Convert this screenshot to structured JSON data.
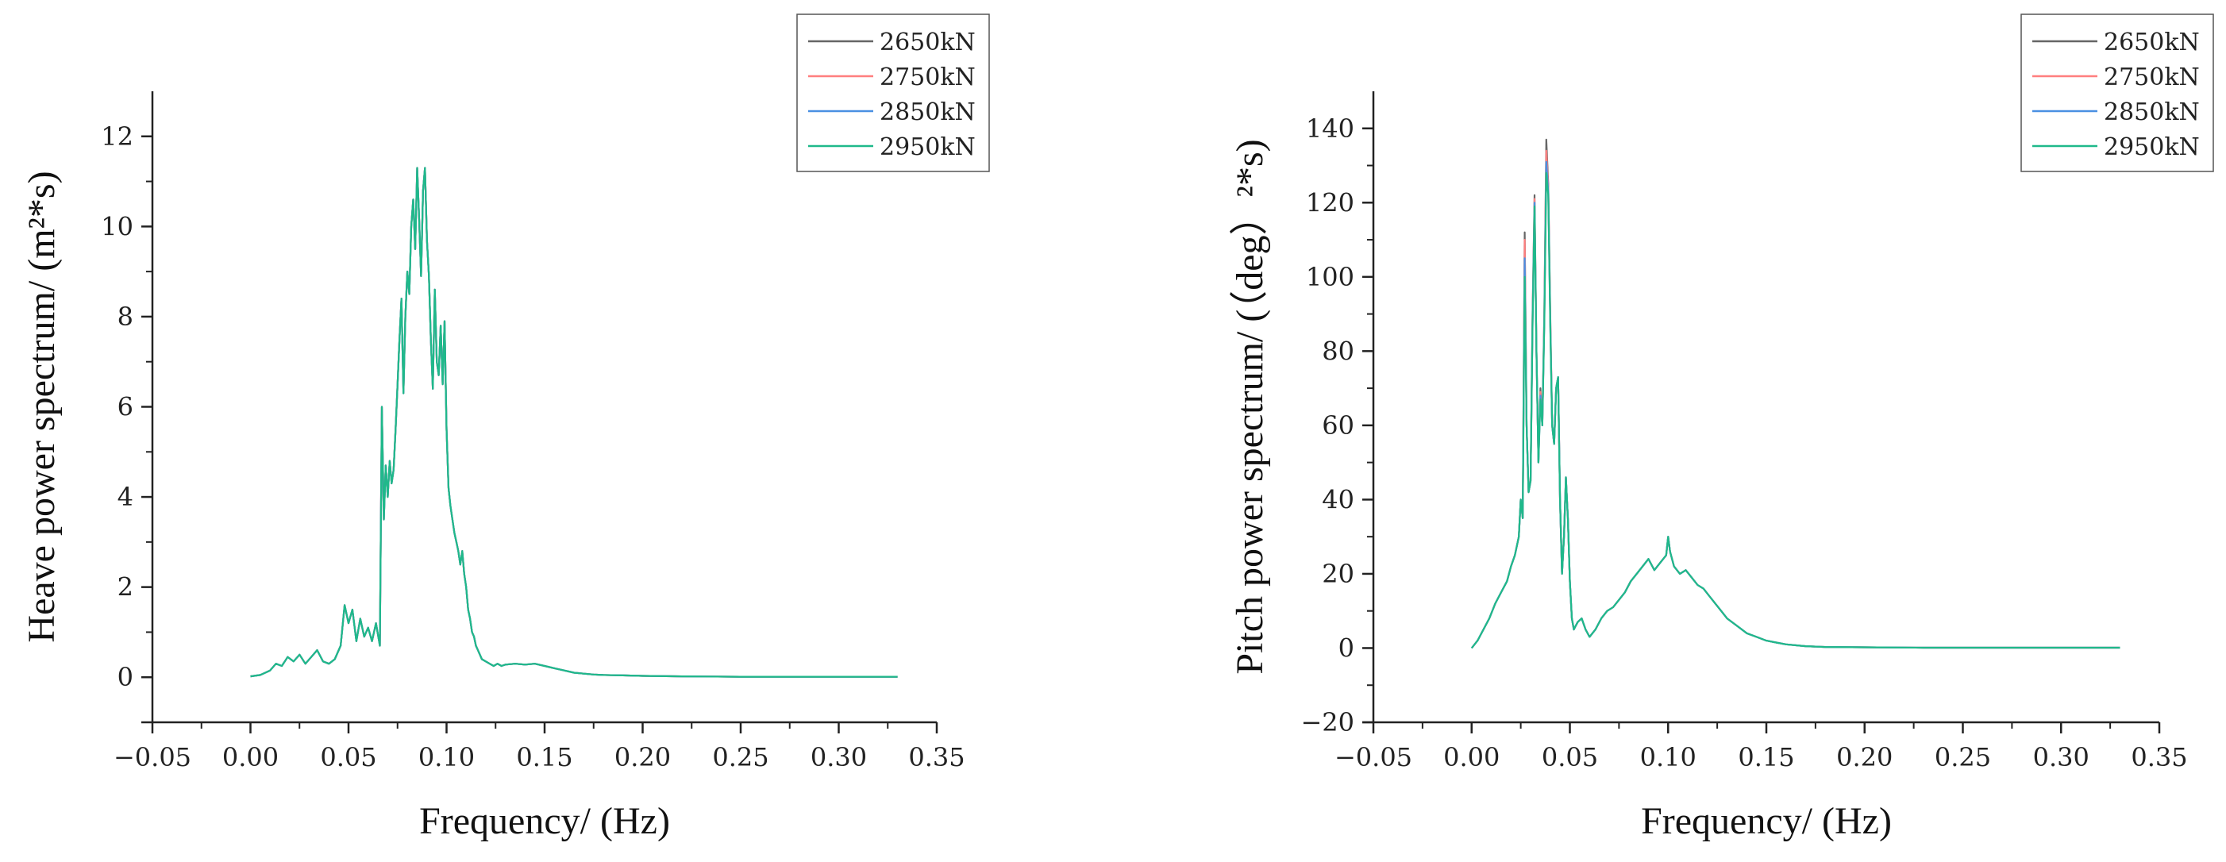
{
  "colors": {
    "series": [
      "#666666",
      "#ff7f7f",
      "#4a90e2",
      "#1fb98a"
    ]
  },
  "chart_data": [
    {
      "type": "line",
      "title": "",
      "xlabel": "Frequency/ (Hz)",
      "ylabel": "Heave power spectrum/ (m²*s)",
      "xlim": [
        -0.05,
        0.35
      ],
      "ylim": [
        -1,
        13
      ],
      "xticks": [
        -0.05,
        0.0,
        0.05,
        0.1,
        0.15,
        0.2,
        0.25,
        0.3,
        0.35
      ],
      "xtick_labels": [
        "−0.05",
        "0.00",
        "0.05",
        "0.10",
        "0.15",
        "0.20",
        "0.25",
        "0.30",
        "0.35"
      ],
      "yticks": [
        0,
        2,
        4,
        6,
        8,
        10,
        12
      ],
      "ytick_labels": [
        "0",
        "2",
        "4",
        "6",
        "8",
        "10",
        "12"
      ],
      "legend": [
        "2650kN",
        "2750kN",
        "2850kN",
        "2950kN"
      ],
      "x": [
        0.0,
        0.005,
        0.01,
        0.013,
        0.016,
        0.019,
        0.022,
        0.025,
        0.028,
        0.031,
        0.034,
        0.037,
        0.04,
        0.043,
        0.046,
        0.048,
        0.05,
        0.052,
        0.054,
        0.056,
        0.058,
        0.06,
        0.062,
        0.064,
        0.066,
        0.067,
        0.068,
        0.069,
        0.07,
        0.071,
        0.072,
        0.073,
        0.074,
        0.075,
        0.076,
        0.077,
        0.078,
        0.079,
        0.08,
        0.081,
        0.082,
        0.083,
        0.084,
        0.085,
        0.086,
        0.087,
        0.088,
        0.089,
        0.09,
        0.091,
        0.092,
        0.093,
        0.094,
        0.095,
        0.096,
        0.097,
        0.098,
        0.099,
        0.1,
        0.101,
        0.102,
        0.103,
        0.104,
        0.105,
        0.106,
        0.107,
        0.108,
        0.109,
        0.11,
        0.111,
        0.112,
        0.113,
        0.114,
        0.115,
        0.116,
        0.118,
        0.12,
        0.122,
        0.124,
        0.126,
        0.128,
        0.13,
        0.135,
        0.14,
        0.145,
        0.15,
        0.155,
        0.16,
        0.165,
        0.17,
        0.175,
        0.18,
        0.19,
        0.2,
        0.22,
        0.25,
        0.28,
        0.3,
        0.33
      ],
      "series": [
        {
          "name": "2650kN",
          "values": [
            0.02,
            0.05,
            0.15,
            0.3,
            0.25,
            0.45,
            0.35,
            0.5,
            0.3,
            0.45,
            0.6,
            0.35,
            0.3,
            0.4,
            0.7,
            1.6,
            1.2,
            1.5,
            0.8,
            1.3,
            0.9,
            1.1,
            0.8,
            1.2,
            0.7,
            6.0,
            3.5,
            4.7,
            4.0,
            4.8,
            4.3,
            4.6,
            5.5,
            6.5,
            7.5,
            8.4,
            6.3,
            8.0,
            9.0,
            8.5,
            10.0,
            10.6,
            9.5,
            11.3,
            10.2,
            8.9,
            10.8,
            11.3,
            9.7,
            8.9,
            7.5,
            6.4,
            8.6,
            7.0,
            6.7,
            7.8,
            6.5,
            7.9,
            5.5,
            4.2,
            3.8,
            3.5,
            3.2,
            3.0,
            2.8,
            2.5,
            2.8,
            2.3,
            2.0,
            1.5,
            1.3,
            1.0,
            0.9,
            0.7,
            0.6,
            0.4,
            0.35,
            0.3,
            0.25,
            0.3,
            0.25,
            0.28,
            0.3,
            0.28,
            0.3,
            0.25,
            0.2,
            0.15,
            0.1,
            0.08,
            0.06,
            0.05,
            0.04,
            0.03,
            0.02,
            0.01,
            0.01,
            0.01,
            0.01
          ]
        },
        {
          "name": "2750kN",
          "values": [
            0.02,
            0.05,
            0.15,
            0.3,
            0.25,
            0.45,
            0.35,
            0.5,
            0.3,
            0.45,
            0.6,
            0.35,
            0.3,
            0.4,
            0.7,
            1.6,
            1.2,
            1.5,
            0.8,
            1.3,
            0.9,
            1.1,
            0.8,
            1.2,
            0.7,
            6.0,
            3.5,
            4.7,
            4.0,
            4.8,
            4.3,
            4.6,
            5.5,
            6.5,
            7.5,
            8.4,
            6.3,
            8.0,
            9.0,
            8.5,
            10.0,
            10.6,
            9.5,
            11.3,
            10.2,
            8.9,
            10.8,
            11.3,
            9.7,
            8.9,
            7.5,
            6.4,
            8.6,
            7.0,
            6.7,
            7.8,
            6.5,
            7.9,
            5.5,
            4.2,
            3.8,
            3.5,
            3.2,
            3.0,
            2.8,
            2.5,
            2.8,
            2.3,
            2.0,
            1.5,
            1.3,
            1.0,
            0.9,
            0.7,
            0.6,
            0.4,
            0.35,
            0.3,
            0.25,
            0.3,
            0.25,
            0.28,
            0.3,
            0.28,
            0.3,
            0.25,
            0.2,
            0.15,
            0.1,
            0.08,
            0.06,
            0.05,
            0.04,
            0.03,
            0.02,
            0.01,
            0.01,
            0.01,
            0.01
          ]
        },
        {
          "name": "2850kN",
          "values": [
            0.02,
            0.05,
            0.15,
            0.3,
            0.25,
            0.45,
            0.35,
            0.5,
            0.3,
            0.45,
            0.6,
            0.35,
            0.3,
            0.4,
            0.7,
            1.6,
            1.2,
            1.5,
            0.8,
            1.3,
            0.9,
            1.1,
            0.8,
            1.2,
            0.7,
            6.0,
            3.5,
            4.7,
            4.0,
            4.8,
            4.3,
            4.6,
            5.5,
            6.5,
            7.5,
            8.4,
            6.3,
            8.0,
            9.0,
            8.5,
            10.0,
            10.6,
            9.5,
            11.3,
            10.2,
            8.9,
            10.8,
            11.3,
            9.7,
            8.9,
            7.5,
            6.4,
            8.6,
            7.0,
            6.7,
            7.8,
            6.5,
            7.9,
            5.5,
            4.2,
            3.8,
            3.5,
            3.2,
            3.0,
            2.8,
            2.5,
            2.8,
            2.3,
            2.0,
            1.5,
            1.3,
            1.0,
            0.9,
            0.7,
            0.6,
            0.4,
            0.35,
            0.3,
            0.25,
            0.3,
            0.25,
            0.28,
            0.3,
            0.28,
            0.3,
            0.25,
            0.2,
            0.15,
            0.1,
            0.08,
            0.06,
            0.05,
            0.04,
            0.03,
            0.02,
            0.01,
            0.01,
            0.01,
            0.01
          ]
        },
        {
          "name": "2950kN",
          "values": [
            0.02,
            0.05,
            0.15,
            0.3,
            0.25,
            0.45,
            0.35,
            0.5,
            0.3,
            0.45,
            0.6,
            0.35,
            0.3,
            0.4,
            0.7,
            1.6,
            1.2,
            1.5,
            0.8,
            1.3,
            0.9,
            1.1,
            0.8,
            1.2,
            0.7,
            6.0,
            3.5,
            4.7,
            4.0,
            4.8,
            4.3,
            4.6,
            5.5,
            6.5,
            7.5,
            8.4,
            6.3,
            8.0,
            9.0,
            8.5,
            10.0,
            10.6,
            9.5,
            11.3,
            10.2,
            8.9,
            10.8,
            11.3,
            9.7,
            8.9,
            7.5,
            6.4,
            8.6,
            7.0,
            6.7,
            7.8,
            6.5,
            7.9,
            5.5,
            4.2,
            3.8,
            3.5,
            3.2,
            3.0,
            2.8,
            2.5,
            2.8,
            2.3,
            2.0,
            1.5,
            1.3,
            1.0,
            0.9,
            0.7,
            0.6,
            0.4,
            0.35,
            0.3,
            0.25,
            0.3,
            0.25,
            0.28,
            0.3,
            0.28,
            0.3,
            0.25,
            0.2,
            0.15,
            0.1,
            0.08,
            0.06,
            0.05,
            0.04,
            0.03,
            0.02,
            0.01,
            0.01,
            0.01,
            0.01
          ]
        }
      ]
    },
    {
      "type": "line",
      "title": "",
      "xlabel": "Frequency/ (Hz)",
      "ylabel": "Pitch power spectrum/ (（deg）²*s)",
      "xlim": [
        -0.05,
        0.35
      ],
      "ylim": [
        -20,
        150
      ],
      "xticks": [
        -0.05,
        0.0,
        0.05,
        0.1,
        0.15,
        0.2,
        0.25,
        0.3,
        0.35
      ],
      "xtick_labels": [
        "−0.05",
        "0.00",
        "0.05",
        "0.10",
        "0.15",
        "0.20",
        "0.25",
        "0.30",
        "0.35"
      ],
      "yticks": [
        -20,
        0,
        20,
        40,
        60,
        80,
        100,
        120,
        140
      ],
      "ytick_labels": [
        "−20",
        "0",
        "20",
        "40",
        "60",
        "80",
        "100",
        "120",
        "140"
      ],
      "legend": [
        "2650kN",
        "2750kN",
        "2850kN",
        "2950kN"
      ],
      "x": [
        0.0,
        0.003,
        0.006,
        0.009,
        0.012,
        0.015,
        0.018,
        0.02,
        0.022,
        0.024,
        0.025,
        0.026,
        0.027,
        0.028,
        0.029,
        0.03,
        0.031,
        0.032,
        0.033,
        0.034,
        0.035,
        0.036,
        0.037,
        0.038,
        0.039,
        0.04,
        0.041,
        0.042,
        0.043,
        0.044,
        0.045,
        0.046,
        0.047,
        0.048,
        0.049,
        0.05,
        0.051,
        0.052,
        0.053,
        0.054,
        0.056,
        0.058,
        0.06,
        0.063,
        0.066,
        0.069,
        0.072,
        0.075,
        0.078,
        0.081,
        0.084,
        0.087,
        0.09,
        0.093,
        0.096,
        0.099,
        0.1,
        0.101,
        0.103,
        0.106,
        0.109,
        0.112,
        0.115,
        0.118,
        0.121,
        0.124,
        0.127,
        0.13,
        0.135,
        0.14,
        0.145,
        0.15,
        0.155,
        0.16,
        0.17,
        0.18,
        0.2,
        0.23,
        0.26,
        0.3,
        0.33
      ],
      "series": [
        {
          "name": "2650kN",
          "values": [
            0,
            2,
            5,
            8,
            12,
            15,
            18,
            22,
            25,
            30,
            40,
            35,
            112,
            60,
            42,
            45,
            90,
            122,
            80,
            50,
            70,
            60,
            90,
            137,
            125,
            90,
            60,
            55,
            70,
            73,
            40,
            20,
            30,
            46,
            35,
            18,
            8,
            5,
            6,
            7,
            8,
            5,
            3,
            5,
            8,
            10,
            11,
            13,
            15,
            18,
            20,
            22,
            24,
            21,
            23,
            25,
            30,
            26,
            22,
            20,
            21,
            19,
            17,
            16,
            14,
            12,
            10,
            8,
            6,
            4,
            3,
            2,
            1.5,
            1,
            0.5,
            0.3,
            0.2,
            0.1,
            0.1,
            0.1,
            0.1
          ]
        },
        {
          "name": "2750kN",
          "values": [
            0,
            2,
            5,
            8,
            12,
            15,
            18,
            22,
            25,
            30,
            40,
            35,
            110,
            60,
            42,
            45,
            89,
            121,
            80,
            50,
            69,
            60,
            89,
            134,
            124,
            89,
            60,
            55,
            70,
            73,
            40,
            20,
            30,
            46,
            35,
            18,
            8,
            5,
            6,
            7,
            8,
            5,
            3,
            5,
            8,
            10,
            11,
            13,
            15,
            18,
            20,
            22,
            24,
            21,
            23,
            25,
            30,
            26,
            22,
            20,
            21,
            19,
            17,
            16,
            14,
            12,
            10,
            8,
            6,
            4,
            3,
            2,
            1.5,
            1,
            0.5,
            0.3,
            0.2,
            0.1,
            0.1,
            0.1,
            0.1
          ]
        },
        {
          "name": "2850kN",
          "values": [
            0,
            2,
            5,
            8,
            12,
            15,
            18,
            22,
            25,
            30,
            40,
            35,
            105,
            60,
            42,
            45,
            88,
            120,
            80,
            50,
            68,
            60,
            88,
            131,
            123,
            88,
            60,
            55,
            70,
            73,
            40,
            20,
            30,
            46,
            35,
            18,
            8,
            5,
            6,
            7,
            8,
            5,
            3,
            5,
            8,
            10,
            11,
            13,
            15,
            18,
            20,
            22,
            24,
            21,
            23,
            25,
            30,
            26,
            22,
            20,
            21,
            19,
            17,
            16,
            14,
            12,
            10,
            8,
            6,
            4,
            3,
            2,
            1.5,
            1,
            0.5,
            0.3,
            0.2,
            0.1,
            0.1,
            0.1,
            0.1
          ]
        },
        {
          "name": "2950kN",
          "values": [
            0,
            2,
            5,
            8,
            12,
            15,
            18,
            22,
            25,
            30,
            40,
            35,
            100,
            60,
            42,
            45,
            87,
            119,
            80,
            50,
            67,
            60,
            87,
            128,
            122,
            87,
            60,
            55,
            70,
            73,
            40,
            20,
            30,
            46,
            35,
            18,
            8,
            5,
            6,
            7,
            8,
            5,
            3,
            5,
            8,
            10,
            11,
            13,
            15,
            18,
            20,
            22,
            24,
            21,
            23,
            25,
            30,
            26,
            22,
            20,
            21,
            19,
            17,
            16,
            14,
            12,
            10,
            8,
            6,
            4,
            3,
            2,
            1.5,
            1,
            0.5,
            0.3,
            0.2,
            0.1,
            0.1,
            0.1,
            0.1
          ]
        }
      ]
    }
  ]
}
